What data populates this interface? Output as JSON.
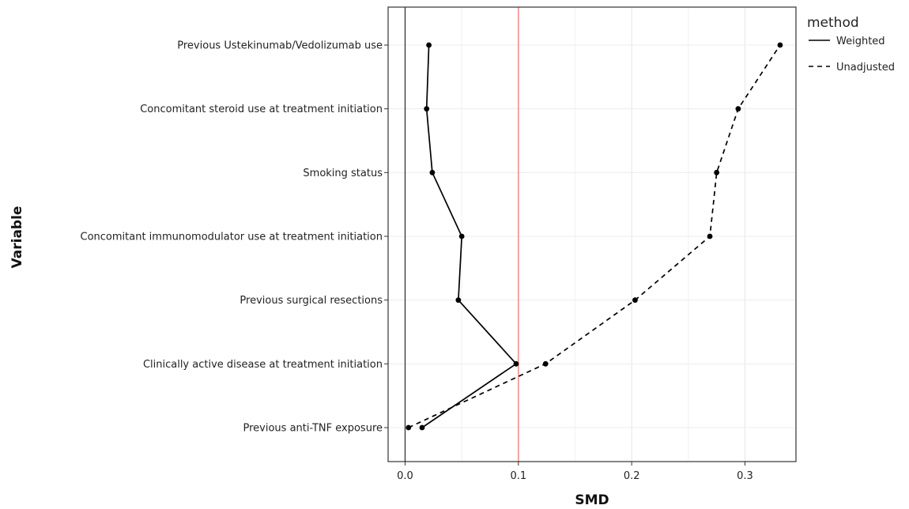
{
  "chart_data": {
    "type": "line",
    "xlabel": "SMD",
    "ylabel": "Variable",
    "xlim": [
      -0.015,
      0.345
    ],
    "x_ticks": [
      0.0,
      0.1,
      0.2,
      0.3
    ],
    "x_tick_labels": [
      "0.0",
      "0.1",
      "0.2",
      "0.3"
    ],
    "categories": [
      "Previous anti-TNF exposure",
      "Clinically active disease at treatment initiation",
      "Previous surgical resections",
      "Concomitant immunomodulator use at treatment initiation",
      "Smoking status",
      "Concomitant steroid use at treatment initiation",
      "Previous Ustekinumab/Vedolizumab use"
    ],
    "threshold": 0.1,
    "threshold_color": "#f08080",
    "zero_line": 0.0,
    "grid": true,
    "legend": {
      "title": "method",
      "position": "right"
    },
    "series": [
      {
        "name": "Weighted",
        "line_style": "solid",
        "color": "#000000",
        "values": [
          0.015,
          0.098,
          0.047,
          0.05,
          0.024,
          0.019,
          0.021
        ]
      },
      {
        "name": "Unadjusted",
        "line_style": "dashed",
        "color": "#000000",
        "values": [
          0.003,
          0.124,
          0.203,
          0.269,
          0.275,
          0.294,
          0.331
        ]
      }
    ]
  }
}
